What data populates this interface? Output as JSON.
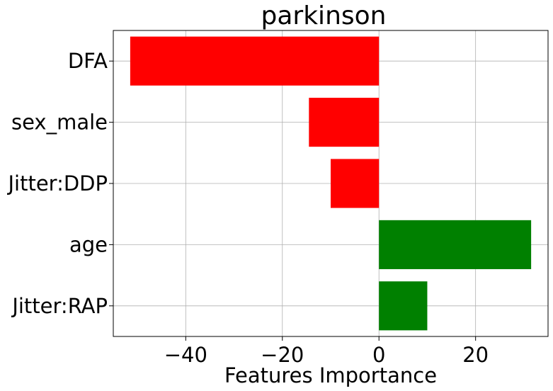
{
  "chart_data": {
    "type": "bar",
    "orientation": "horizontal",
    "title": "parkinson",
    "xlabel": "Features Importance",
    "ylabel": "",
    "categories": [
      "DFA",
      "sex_male",
      "Jitter:DDP",
      "age",
      "Jitter:RAP"
    ],
    "values": [
      -51.5,
      -14.5,
      -10.0,
      31.5,
      10.0
    ],
    "xlim": [
      -55,
      35
    ],
    "xticks": [
      -40,
      -20,
      0,
      20
    ],
    "xtick_labels": [
      "−40",
      "−20",
      "0",
      "20"
    ],
    "grid": true,
    "colors": {
      "negative": "#ff0000",
      "positive": "#008000"
    }
  }
}
